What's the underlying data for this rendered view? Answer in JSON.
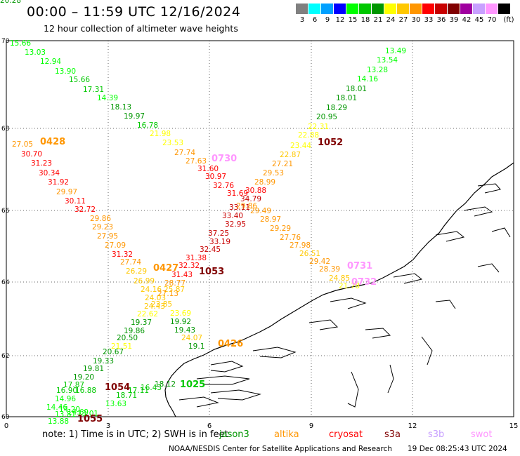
{
  "header": {
    "title": "00:00 – 11:59 UTC 12/16/2024",
    "subtitle": "12 hour collection of altimeter wave heights"
  },
  "color_scale": {
    "unit": "(ft)",
    "bins": [
      {
        "label": "3",
        "color": "#808080"
      },
      {
        "label": "6",
        "color": "#00ffff"
      },
      {
        "label": "9",
        "color": "#00a0ff"
      },
      {
        "label": "12",
        "color": "#0000ff"
      },
      {
        "label": "15",
        "color": "#00ff00"
      },
      {
        "label": "18",
        "color": "#00c800"
      },
      {
        "label": "21",
        "color": "#009600"
      },
      {
        "label": "24",
        "color": "#ffff00"
      },
      {
        "label": "27",
        "color": "#ffc800"
      },
      {
        "label": "30",
        "color": "#ff9600"
      },
      {
        "label": "33",
        "color": "#ff0000"
      },
      {
        "label": "36",
        "color": "#c80000"
      },
      {
        "label": "39",
        "color": "#800000"
      },
      {
        "label": "42",
        "color": "#a000a0"
      },
      {
        "label": "45",
        "color": "#c8a0ff"
      },
      {
        "label": "70",
        "color": "#ff96ff"
      },
      {
        "label": "",
        "color": "#000000"
      }
    ]
  },
  "map": {
    "lon_ticks": [
      "0",
      "3",
      "6",
      "9",
      "12",
      "15"
    ],
    "lat_ticks": [
      "70",
      "68",
      "66",
      "64",
      "62",
      "60"
    ],
    "track_labels": [
      {
        "text": "0428",
        "color": "#ff9600"
      },
      {
        "text": "0730",
        "color": "#ff96ff"
      },
      {
        "text": "1052",
        "color": "#800000"
      },
      {
        "text": "0427",
        "color": "#ff9600"
      },
      {
        "text": "1053",
        "color": "#800000"
      },
      {
        "text": "0731",
        "color": "#ff96ff"
      },
      {
        "text": "0732",
        "color": "#ff96ff"
      },
      {
        "text": "1054",
        "color": "#800000"
      },
      {
        "text": "1055",
        "color": "#800000"
      },
      {
        "text": "1025",
        "color": "#00c800"
      },
      {
        "text": "0426",
        "color": "#ff9600"
      }
    ],
    "observations": [
      {
        "v": "15.66",
        "c": "#00ff00"
      },
      {
        "v": "13.03",
        "c": "#00ff00"
      },
      {
        "v": "12.94",
        "c": "#00ff00"
      },
      {
        "v": "13.90",
        "c": "#00ff00"
      },
      {
        "v": "15.66",
        "c": "#00c800"
      },
      {
        "v": "17.31",
        "c": "#00c800"
      },
      {
        "v": "14.39",
        "c": "#00ff00"
      },
      {
        "v": "18.13",
        "c": "#009600"
      },
      {
        "v": "19.97",
        "c": "#009600"
      },
      {
        "v": "16.78",
        "c": "#00c800"
      },
      {
        "v": "21.98",
        "c": "#ffff00"
      },
      {
        "v": "23.53",
        "c": "#ffff00"
      },
      {
        "v": "27.74",
        "c": "#ff9600"
      },
      {
        "v": "27.63",
        "c": "#ff9600"
      },
      {
        "v": "31.60",
        "c": "#ff0000"
      },
      {
        "v": "30.97",
        "c": "#ff0000"
      },
      {
        "v": "32.76",
        "c": "#ff0000"
      },
      {
        "v": "31.69",
        "c": "#ff0000"
      },
      {
        "v": "33.11",
        "c": "#c80000"
      },
      {
        "v": "33.40",
        "c": "#c80000"
      },
      {
        "v": "32.95",
        "c": "#c80000"
      },
      {
        "v": "37.25",
        "c": "#c80000"
      },
      {
        "v": "33.19",
        "c": "#c80000"
      },
      {
        "v": "32.45",
        "c": "#c80000"
      },
      {
        "v": "31.38",
        "c": "#ff0000"
      },
      {
        "v": "32.32",
        "c": "#ff0000"
      },
      {
        "v": "31.43",
        "c": "#ff0000"
      },
      {
        "v": "13.49",
        "c": "#00ff00"
      },
      {
        "v": "13.54",
        "c": "#00ff00"
      },
      {
        "v": "13.28",
        "c": "#00ff00"
      },
      {
        "v": "14.16",
        "c": "#00ff00"
      },
      {
        "v": "18.01",
        "c": "#009600"
      },
      {
        "v": "18.01",
        "c": "#009600"
      },
      {
        "v": "18.29",
        "c": "#009600"
      },
      {
        "v": "20.95",
        "c": "#009600"
      },
      {
        "v": "22.31",
        "c": "#ffff00"
      },
      {
        "v": "22.88",
        "c": "#ffff00"
      },
      {
        "v": "23.44",
        "c": "#ffff00"
      },
      {
        "v": "22.87",
        "c": "#ffc800"
      },
      {
        "v": "27.21",
        "c": "#ff9600"
      },
      {
        "v": "29.53",
        "c": "#ff9600"
      },
      {
        "v": "28.99",
        "c": "#ff9600"
      },
      {
        "v": "30.88",
        "c": "#ff0000"
      },
      {
        "v": "34.79",
        "c": "#c80000"
      },
      {
        "v": "29.86",
        "c": "#ff9600"
      },
      {
        "v": "29.49",
        "c": "#ff9600"
      },
      {
        "v": "28.97",
        "c": "#ff9600"
      },
      {
        "v": "29.29",
        "c": "#ff9600"
      },
      {
        "v": "27.76",
        "c": "#ff9600"
      },
      {
        "v": "27.98",
        "c": "#ff9600"
      },
      {
        "v": "26.51",
        "c": "#ffc800"
      },
      {
        "v": "29.42",
        "c": "#ff9600"
      },
      {
        "v": "28.39",
        "c": "#ff9600"
      },
      {
        "v": "24.85",
        "c": "#ffc800"
      },
      {
        "v": "21.78",
        "c": "#ffff00"
      },
      {
        "v": "27.05",
        "c": "#ff9600"
      },
      {
        "v": "30.70",
        "c": "#ff0000"
      },
      {
        "v": "31.23",
        "c": "#ff0000"
      },
      {
        "v": "30.34",
        "c": "#ff0000"
      },
      {
        "v": "31.92",
        "c": "#ff0000"
      },
      {
        "v": "29.97",
        "c": "#ff9600"
      },
      {
        "v": "30.11",
        "c": "#ff0000"
      },
      {
        "v": "32.72",
        "c": "#ff0000"
      },
      {
        "v": "29.86",
        "c": "#ff9600"
      },
      {
        "v": "29.23",
        "c": "#ff9600"
      },
      {
        "v": "27.95",
        "c": "#ff9600"
      },
      {
        "v": "27.09",
        "c": "#ff9600"
      },
      {
        "v": "31.32",
        "c": "#ff0000"
      },
      {
        "v": "27.74",
        "c": "#ff9600"
      },
      {
        "v": "26.29",
        "c": "#ffc800"
      },
      {
        "v": "26.99",
        "c": "#ffc800"
      },
      {
        "v": "28.77",
        "c": "#ff9600"
      },
      {
        "v": "24.16",
        "c": "#ffc800"
      },
      {
        "v": "25.87",
        "c": "#ffc800"
      },
      {
        "v": "27.13",
        "c": "#ff9600"
      },
      {
        "v": "24.03",
        "c": "#ffc800"
      },
      {
        "v": "24.43",
        "c": "#ffc800"
      },
      {
        "v": "23.85",
        "c": "#ffc800"
      },
      {
        "v": "22.62",
        "c": "#ffff00"
      },
      {
        "v": "23.69",
        "c": "#ffff00"
      },
      {
        "v": "19.37",
        "c": "#009600"
      },
      {
        "v": "19.92",
        "c": "#009600"
      },
      {
        "v": "19.86",
        "c": "#009600"
      },
      {
        "v": "19.43",
        "c": "#009600"
      },
      {
        "v": "20.50",
        "c": "#009600"
      },
      {
        "v": "24.07",
        "c": "#ffc800"
      },
      {
        "v": "21.51",
        "c": "#ffff00"
      },
      {
        "v": "19.1",
        "c": "#009600"
      },
      {
        "v": "20.67",
        "c": "#009600"
      },
      {
        "v": "19.33",
        "c": "#009600"
      },
      {
        "v": "19.81",
        "c": "#009600"
      },
      {
        "v": "19.20",
        "c": "#009600"
      },
      {
        "v": "17.87",
        "c": "#00c800"
      },
      {
        "v": "16.90",
        "c": "#00c800"
      },
      {
        "v": "16.88",
        "c": "#00c800"
      },
      {
        "v": "14.96",
        "c": "#00ff00"
      },
      {
        "v": "14.46",
        "c": "#00ff00"
      },
      {
        "v": "14.69",
        "c": "#00ff00"
      },
      {
        "v": "14.20",
        "c": "#00ff00"
      },
      {
        "v": "13.81",
        "c": "#00ff00"
      },
      {
        "v": "13.88",
        "c": "#00ff00"
      },
      {
        "v": "13.01",
        "c": "#00ff00"
      },
      {
        "v": "13.63",
        "c": "#00ff00"
      },
      {
        "v": "18.71",
        "c": "#00c800"
      },
      {
        "v": "17.11",
        "c": "#00c800"
      },
      {
        "v": "16.43",
        "c": "#00c800"
      },
      {
        "v": "18.12",
        "c": "#009600"
      },
      {
        "v": "20.28",
        "c": "#009600"
      }
    ]
  },
  "footnote": {
    "note": "note:  1) Time is in UTC;  2) SWH is in feet",
    "satellites": [
      {
        "name": "jason3",
        "color": "#009600"
      },
      {
        "name": "altika",
        "color": "#ff9600"
      },
      {
        "name": "cryosat",
        "color": "#ff0000"
      },
      {
        "name": "s3a",
        "color": "#800000"
      },
      {
        "name": "s3b",
        "color": "#c8a0ff"
      },
      {
        "name": "swot",
        "color": "#ff96ff"
      }
    ]
  },
  "credit": {
    "org": "NOAA/NESDIS Center for Satellite Applications and Research",
    "date": "19 Dec 08:25:43 UTC 2024"
  }
}
